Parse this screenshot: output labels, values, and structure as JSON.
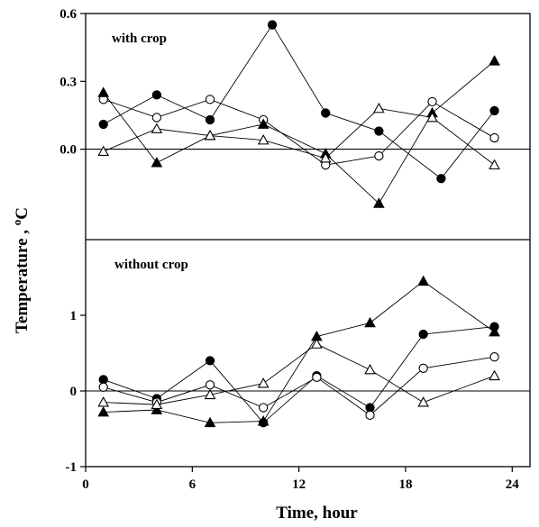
{
  "chart_data": [
    {
      "type": "line",
      "panel": "top",
      "label": "with crop",
      "ylabel": "Temperature ,",
      "ylabel_unit": "oC",
      "ylim": [
        -0.4,
        0.6
      ],
      "yticks": [
        0.0,
        0.3,
        0.6
      ],
      "ytick_labels": [
        "0.0",
        "0.3",
        "0.6"
      ],
      "reference_line": 0,
      "series": [
        {
          "marker": "filled-circle",
          "x": [
            1,
            4,
            7,
            10.5,
            13.5,
            16.5,
            20,
            23
          ],
          "y": [
            0.11,
            0.24,
            0.13,
            0.55,
            0.16,
            0.08,
            -0.13,
            0.17
          ]
        },
        {
          "marker": "open-circle",
          "x": [
            1,
            4,
            7,
            10,
            13.5,
            16.5,
            19.5,
            23
          ],
          "y": [
            0.22,
            0.14,
            0.22,
            0.13,
            -0.07,
            -0.03,
            0.21,
            0.05
          ]
        },
        {
          "marker": "filled-triangle",
          "x": [
            1,
            4,
            7,
            10,
            13.5,
            16.5,
            19.5,
            23
          ],
          "y": [
            0.25,
            -0.06,
            0.06,
            0.11,
            -0.02,
            -0.24,
            0.16,
            0.39
          ]
        },
        {
          "marker": "open-triangle",
          "x": [
            1,
            4,
            7,
            10,
            13.5,
            16.5,
            19.5,
            23
          ],
          "y": [
            -0.01,
            0.09,
            0.06,
            0.04,
            -0.04,
            0.18,
            0.14,
            -0.07
          ]
        }
      ]
    },
    {
      "type": "line",
      "panel": "bottom",
      "label": "without crop",
      "xlabel": "Time,  hour",
      "xlim": [
        0,
        25
      ],
      "xticks": [
        0,
        6,
        12,
        18,
        24
      ],
      "xtick_labels": [
        "0",
        "6",
        "12",
        "18",
        "24"
      ],
      "ylim": [
        -1,
        2
      ],
      "yticks": [
        -1,
        0,
        1
      ],
      "ytick_labels": [
        "-1",
        "0",
        "1"
      ],
      "reference_line": 0,
      "series": [
        {
          "marker": "filled-circle",
          "x": [
            1,
            4,
            7,
            10,
            13,
            16,
            19,
            23
          ],
          "y": [
            0.15,
            -0.1,
            0.4,
            -0.42,
            0.2,
            -0.22,
            0.75,
            0.85
          ]
        },
        {
          "marker": "open-circle",
          "x": [
            1,
            4,
            7,
            10,
            13,
            16,
            19,
            23
          ],
          "y": [
            0.05,
            -0.15,
            0.08,
            -0.22,
            0.18,
            -0.32,
            0.3,
            0.45
          ]
        },
        {
          "marker": "filled-triangle",
          "x": [
            1,
            4,
            7,
            10,
            13,
            16,
            19,
            23
          ],
          "y": [
            -0.28,
            -0.25,
            -0.42,
            -0.4,
            0.72,
            0.9,
            1.45,
            0.78
          ]
        },
        {
          "marker": "open-triangle",
          "x": [
            1,
            4,
            7,
            10,
            13,
            16,
            19,
            23
          ],
          "y": [
            -0.15,
            -0.18,
            -0.05,
            0.1,
            0.62,
            0.28,
            -0.15,
            0.2
          ]
        }
      ]
    }
  ]
}
